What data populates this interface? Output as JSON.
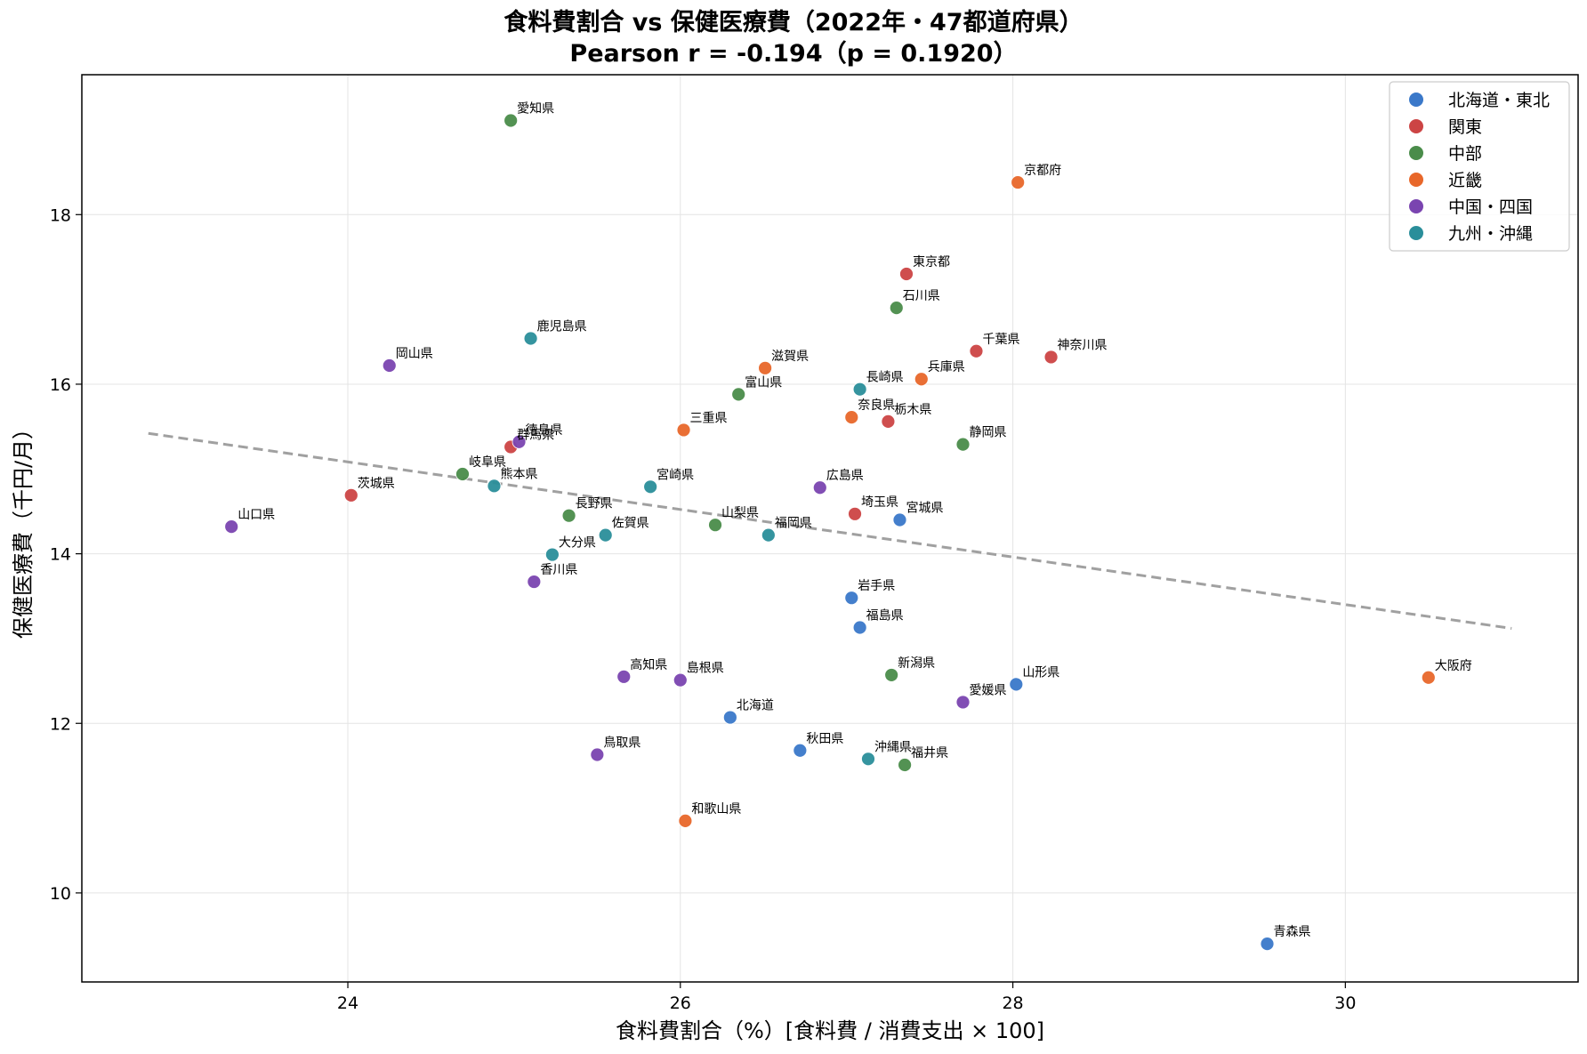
{
  "chart_data": {
    "type": "scatter",
    "title_line1": "食料費割合 vs 保健医療費（2022年・47都道府県）",
    "title_line2": "Pearson r = -0.194（p = 0.1920）",
    "xlabel": "食料費割合（%）[食料費 / 消費支出 × 100]",
    "ylabel": "保健医療費（千円/月）",
    "xlim": [
      22.4,
      31.4
    ],
    "ylim": [
      8.95,
      19.65
    ],
    "xticks": [
      24,
      26,
      28,
      30
    ],
    "yticks": [
      10,
      12,
      14,
      16,
      18
    ],
    "grid": true,
    "legend_position": "top-right",
    "trendline": {
      "x": [
        22.8,
        31.0
      ],
      "y": [
        15.42,
        13.12
      ],
      "color": "#a0a0a0",
      "style": "dashed"
    },
    "series": [
      {
        "name": "北海道・東北",
        "color": "#3a78c9",
        "points": [
          {
            "label": "北海道",
            "x": 26.3,
            "y": 12.07
          },
          {
            "label": "青森県",
            "x": 29.53,
            "y": 9.4
          },
          {
            "label": "岩手県",
            "x": 27.03,
            "y": 13.48
          },
          {
            "label": "宮城県",
            "x": 27.32,
            "y": 14.4
          },
          {
            "label": "秋田県",
            "x": 26.72,
            "y": 11.68
          },
          {
            "label": "山形県",
            "x": 28.02,
            "y": 12.46
          },
          {
            "label": "福島県",
            "x": 27.08,
            "y": 13.13
          }
        ]
      },
      {
        "name": "関東",
        "color": "#cc4444",
        "points": [
          {
            "label": "茨城県",
            "x": 24.02,
            "y": 14.69
          },
          {
            "label": "栃木県",
            "x": 27.25,
            "y": 15.56
          },
          {
            "label": "群馬県",
            "x": 24.98,
            "y": 15.26
          },
          {
            "label": "埼玉県",
            "x": 27.05,
            "y": 14.47
          },
          {
            "label": "千葉県",
            "x": 27.78,
            "y": 16.39
          },
          {
            "label": "東京都",
            "x": 27.36,
            "y": 17.3
          },
          {
            "label": "神奈川県",
            "x": 28.23,
            "y": 16.32
          }
        ]
      },
      {
        "name": "中部",
        "color": "#4a8c4a",
        "points": [
          {
            "label": "新潟県",
            "x": 27.27,
            "y": 12.57
          },
          {
            "label": "富山県",
            "x": 26.35,
            "y": 15.88
          },
          {
            "label": "石川県",
            "x": 27.3,
            "y": 16.9
          },
          {
            "label": "福井県",
            "x": 27.35,
            "y": 11.51
          },
          {
            "label": "山梨県",
            "x": 26.21,
            "y": 14.34
          },
          {
            "label": "長野県",
            "x": 25.33,
            "y": 14.45
          },
          {
            "label": "岐阜県",
            "x": 24.69,
            "y": 14.94
          },
          {
            "label": "静岡県",
            "x": 27.7,
            "y": 15.29
          },
          {
            "label": "愛知県",
            "x": 24.98,
            "y": 19.11
          }
        ]
      },
      {
        "name": "近畿",
        "color": "#e8672a",
        "points": [
          {
            "label": "三重県",
            "x": 26.02,
            "y": 15.46
          },
          {
            "label": "滋賀県",
            "x": 26.51,
            "y": 16.19
          },
          {
            "label": "京都府",
            "x": 28.03,
            "y": 18.38
          },
          {
            "label": "大阪府",
            "x": 30.5,
            "y": 12.54
          },
          {
            "label": "兵庫県",
            "x": 27.45,
            "y": 16.06
          },
          {
            "label": "奈良県",
            "x": 27.03,
            "y": 15.61
          },
          {
            "label": "和歌山県",
            "x": 26.03,
            "y": 10.85
          }
        ]
      },
      {
        "name": "中国・四国",
        "color": "#7a44b0",
        "points": [
          {
            "label": "鳥取県",
            "x": 25.5,
            "y": 11.63
          },
          {
            "label": "島根県",
            "x": 26.0,
            "y": 12.51
          },
          {
            "label": "岡山県",
            "x": 24.25,
            "y": 16.22
          },
          {
            "label": "広島県",
            "x": 26.84,
            "y": 14.78
          },
          {
            "label": "山口県",
            "x": 23.3,
            "y": 14.32
          },
          {
            "label": "徳島県",
            "x": 25.03,
            "y": 15.32
          },
          {
            "label": "香川県",
            "x": 25.12,
            "y": 13.67
          },
          {
            "label": "愛媛県",
            "x": 27.7,
            "y": 12.25
          },
          {
            "label": "高知県",
            "x": 25.66,
            "y": 12.55
          }
        ]
      },
      {
        "name": "九州・沖縄",
        "color": "#2a8e9a",
        "points": [
          {
            "label": "福岡県",
            "x": 26.53,
            "y": 14.22
          },
          {
            "label": "佐賀県",
            "x": 25.55,
            "y": 14.22
          },
          {
            "label": "長崎県",
            "x": 27.08,
            "y": 15.94
          },
          {
            "label": "熊本県",
            "x": 24.88,
            "y": 14.8
          },
          {
            "label": "大分県",
            "x": 25.23,
            "y": 13.99
          },
          {
            "label": "宮崎県",
            "x": 25.82,
            "y": 14.79
          },
          {
            "label": "鹿児島県",
            "x": 25.1,
            "y": 16.54
          },
          {
            "label": "沖縄県",
            "x": 27.13,
            "y": 11.58
          }
        ]
      }
    ]
  }
}
